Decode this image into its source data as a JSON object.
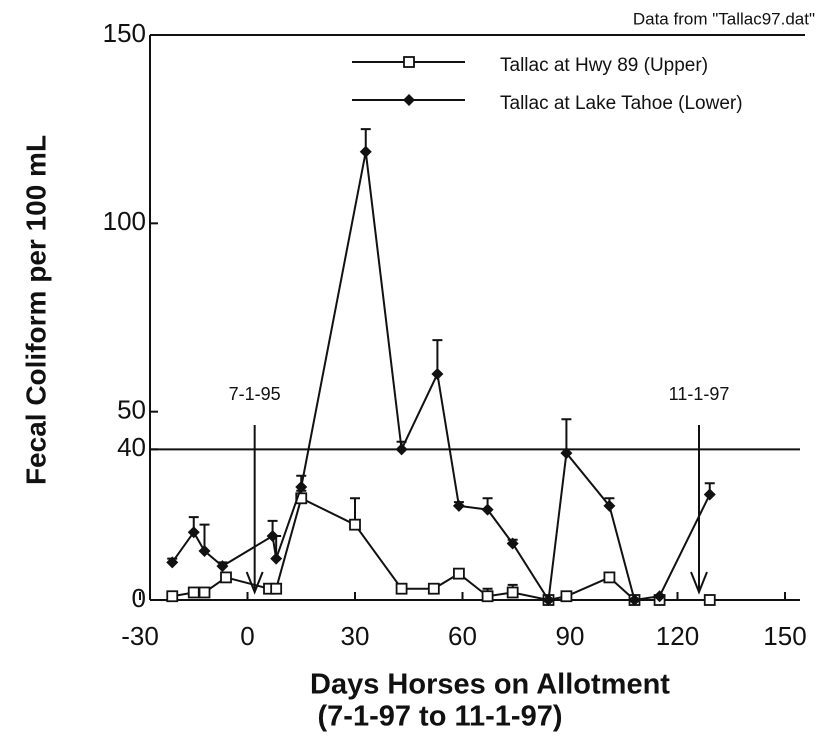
{
  "chart_data": {
    "type": "line",
    "source": "Data from \"Tallac97.dat\"",
    "xlabel": [
      "Days Horses on Allotment",
      "(7-1-97 to 11-1-97)"
    ],
    "ylabel": "Fecal Coliform per 100 mL",
    "xlim": [
      -30,
      150
    ],
    "xticks": [
      -30,
      0,
      30,
      60,
      90,
      120,
      150
    ],
    "ylim": [
      0,
      150
    ],
    "yticks": [
      0,
      40,
      50,
      100,
      150
    ],
    "hline": 40,
    "annotations": [
      {
        "label": "7-1-95",
        "x": 2
      },
      {
        "label": "11-1-97",
        "x": 126
      }
    ],
    "series": [
      {
        "name": "Tallac at Hwy 89 (Upper)",
        "color": "#111111",
        "marker": "square",
        "x": [
          -21,
          -15,
          -12,
          -6,
          6,
          8,
          15,
          30,
          43,
          52,
          59,
          67,
          74,
          84,
          89,
          101,
          108,
          115,
          129
        ],
        "values": [
          1,
          2,
          2,
          6,
          3,
          3,
          27,
          20,
          3,
          3,
          7,
          1,
          2,
          0,
          1,
          6,
          0,
          0,
          0
        ],
        "errors": [
          0,
          0,
          1,
          0,
          0,
          0,
          2,
          7,
          0,
          1,
          0,
          2,
          2,
          0,
          0,
          0,
          0,
          0,
          0
        ]
      },
      {
        "name": "Tallac at Lake Tahoe (Lower)",
        "color": "#111111",
        "marker": "diamond",
        "x": [
          -21,
          -15,
          -12,
          -7,
          7,
          8,
          15,
          33,
          43,
          53,
          59,
          67,
          74,
          84,
          89,
          101,
          108,
          115,
          129
        ],
        "values": [
          10,
          18,
          13,
          9,
          17,
          11,
          30,
          119,
          40,
          60,
          25,
          24,
          15,
          0,
          39,
          25,
          0,
          1,
          28
        ],
        "errors": [
          1,
          4,
          7,
          1,
          4,
          6,
          3,
          6,
          2,
          9,
          1,
          3,
          1,
          0,
          9,
          2,
          0,
          0,
          3
        ]
      }
    ]
  }
}
